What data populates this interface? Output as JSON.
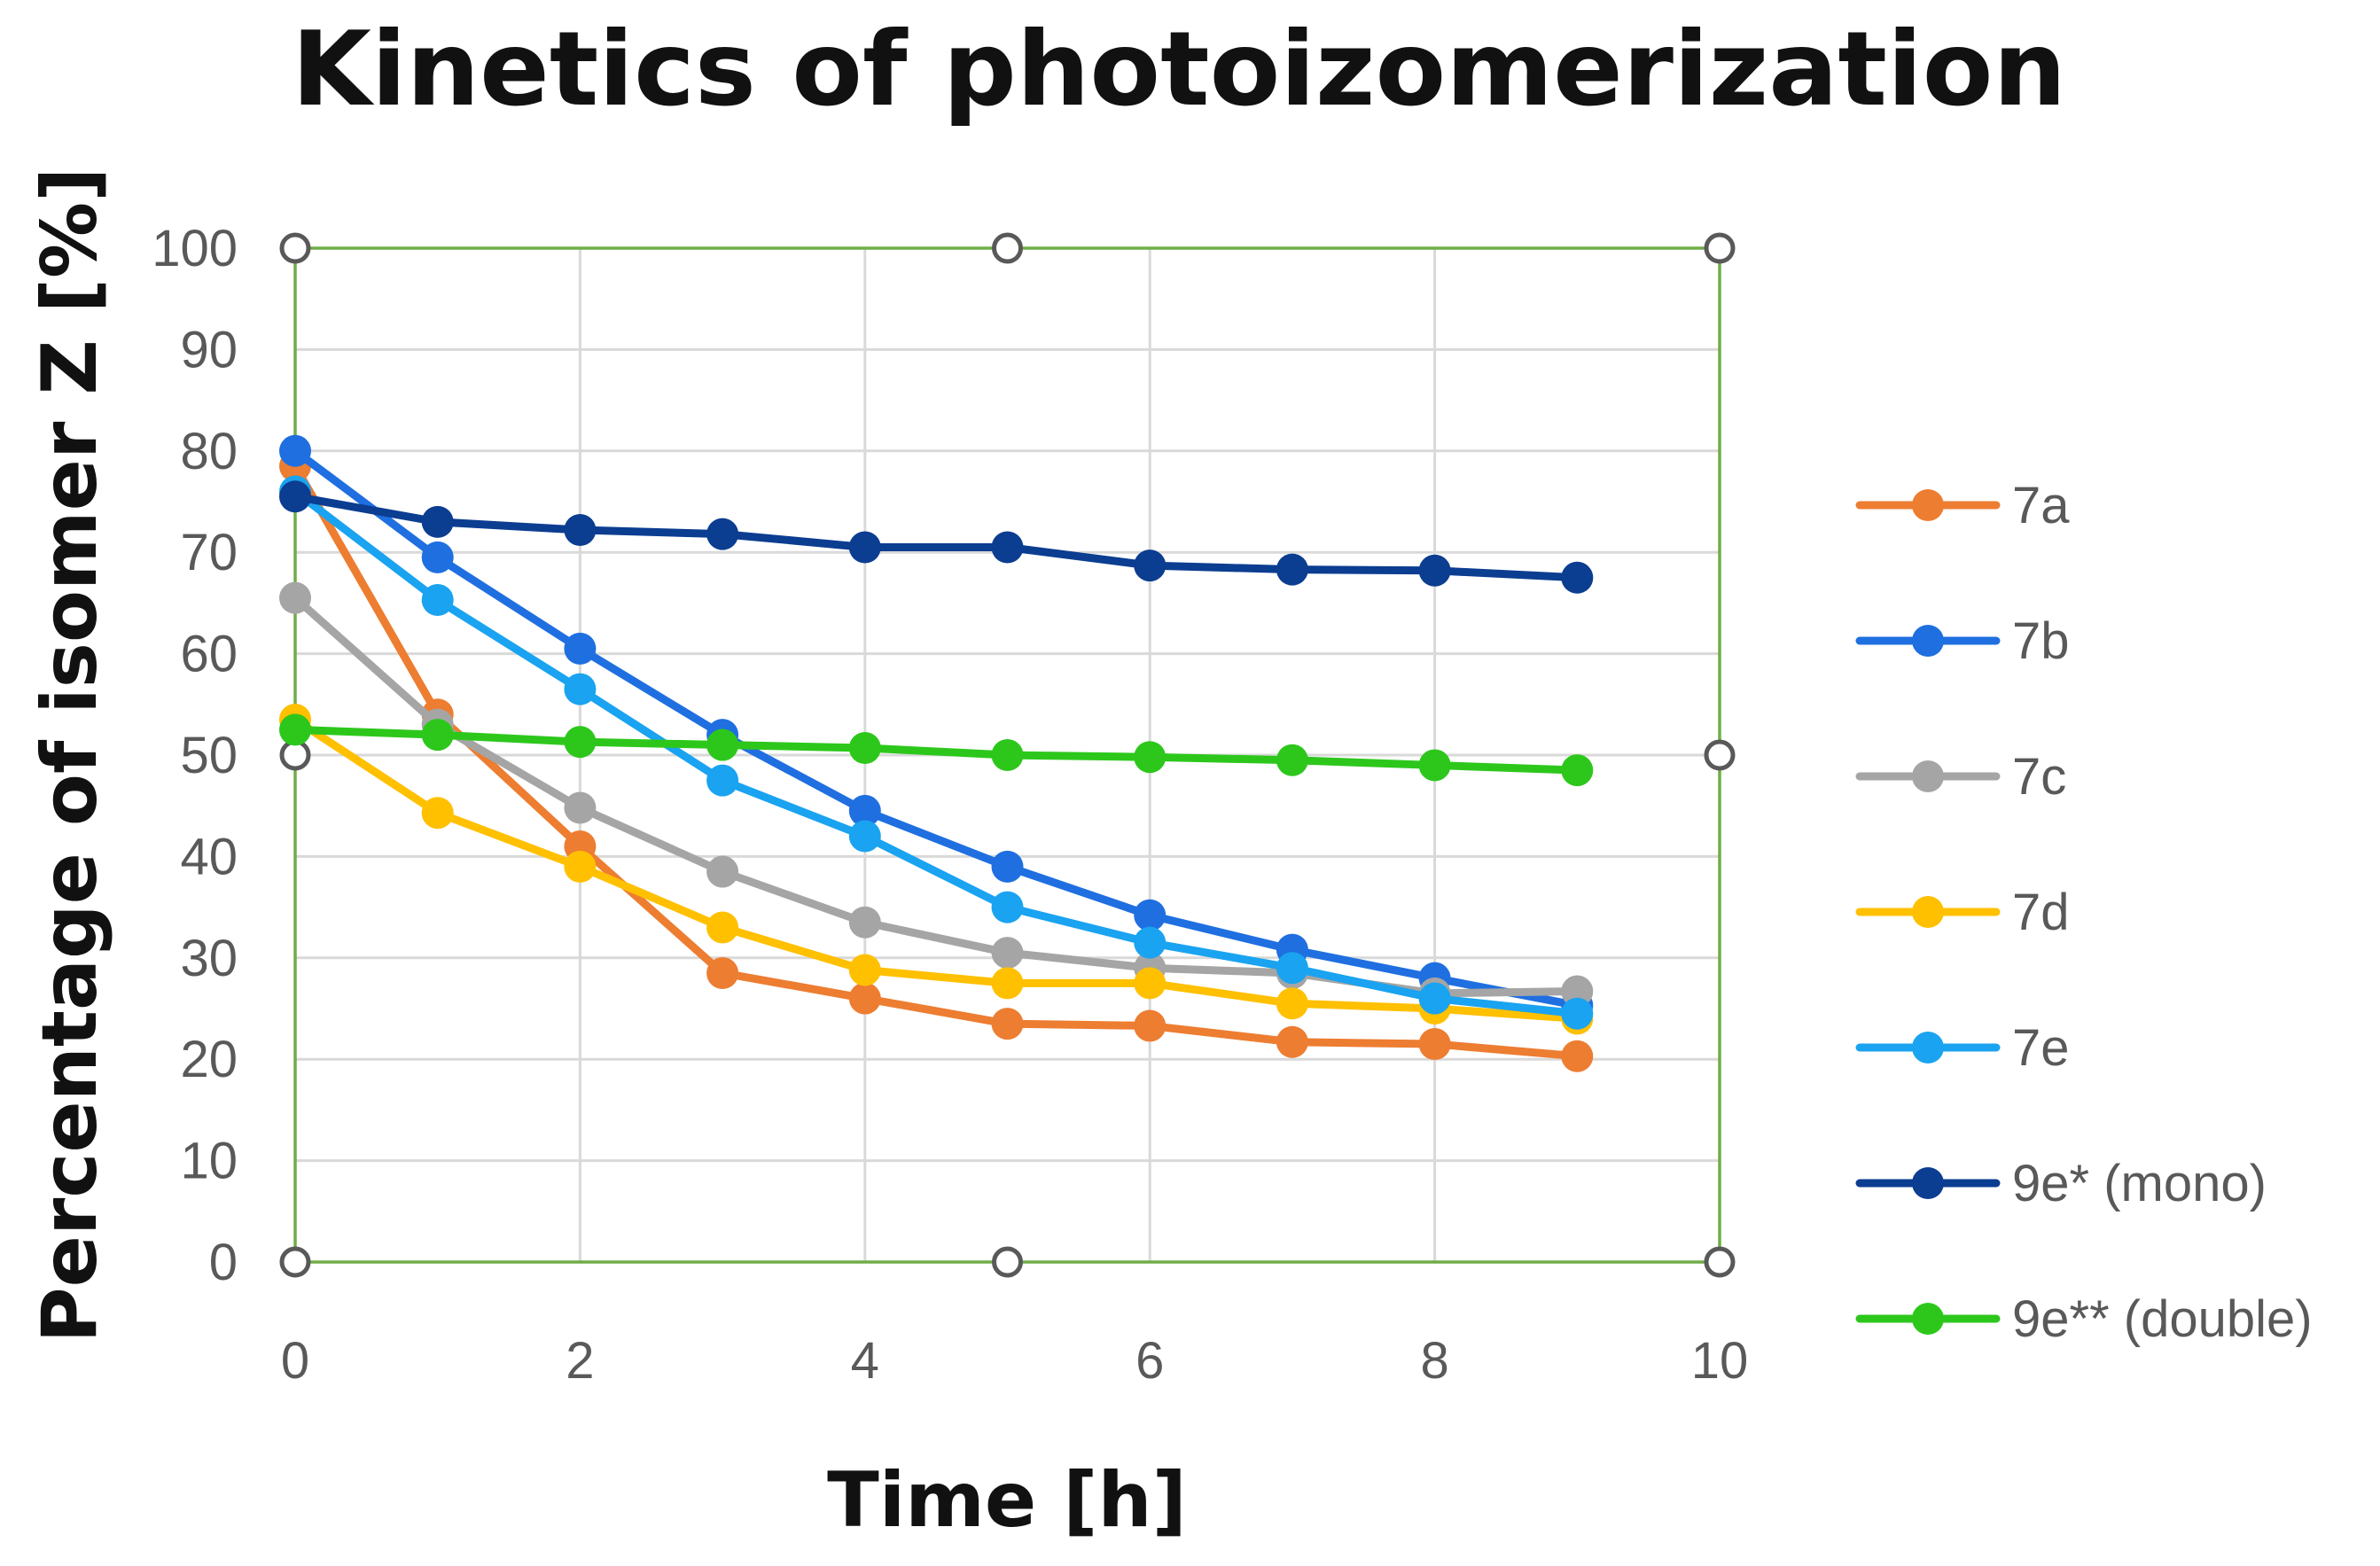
{
  "chart_data": {
    "type": "line",
    "title": "Kinetics of photoizomerization",
    "xlabel": "Time [h]",
    "ylabel": "Percentage of isomer Z [%]",
    "xlim": [
      0,
      10
    ],
    "ylim": [
      0,
      100
    ],
    "xticks": [
      0,
      2,
      4,
      6,
      8,
      10
    ],
    "yticks": [
      0,
      10,
      20,
      30,
      40,
      50,
      60,
      70,
      80,
      90,
      100
    ],
    "xtick_labels": [
      "0",
      "2",
      "4",
      "6",
      "8",
      "10"
    ],
    "ytick_labels": [
      "0",
      "10",
      "20",
      "30",
      "40",
      "50",
      "60",
      "70",
      "80",
      "90",
      "100"
    ],
    "grid": true,
    "legend_position": "right",
    "x": [
      0,
      1,
      2,
      3,
      4,
      5,
      6,
      7,
      8,
      9
    ],
    "series": [
      {
        "name": "7a",
        "color": "#ED7D31",
        "values": [
          78.5,
          54,
          41,
          28.5,
          26,
          23.5,
          23.3,
          21.7,
          21.5,
          20.3
        ]
      },
      {
        "name": "7b",
        "color": "#1F6FE0",
        "values": [
          80,
          69.5,
          60.5,
          52,
          44.5,
          39,
          34.2,
          30.8,
          28,
          25.3
        ]
      },
      {
        "name": "7c",
        "color": "#A5A5A5",
        "values": [
          65.5,
          53,
          44.8,
          38.5,
          33.5,
          30.5,
          29,
          28.5,
          26.5,
          26.7
        ]
      },
      {
        "name": "7d",
        "color": "#FFC000",
        "values": [
          53.5,
          44.3,
          39,
          33,
          28.8,
          27.5,
          27.5,
          25.5,
          25,
          24
        ]
      },
      {
        "name": "7e",
        "color": "#1AA3F0",
        "values": [
          76,
          65.3,
          56.5,
          47.5,
          42,
          35,
          31.5,
          29,
          26,
          24.5
        ]
      },
      {
        "name": "9e* (mono)",
        "color": "#0B3D91",
        "values": [
          75.5,
          73,
          72.2,
          71.8,
          70.5,
          70.5,
          68.7,
          68.3,
          68.2,
          67.5
        ]
      },
      {
        "name": "9e** (double)",
        "color": "#2DC71C",
        "values": [
          52.5,
          52,
          51.3,
          51,
          50.7,
          50,
          49.8,
          49.5,
          49,
          48.5
        ]
      }
    ]
  }
}
